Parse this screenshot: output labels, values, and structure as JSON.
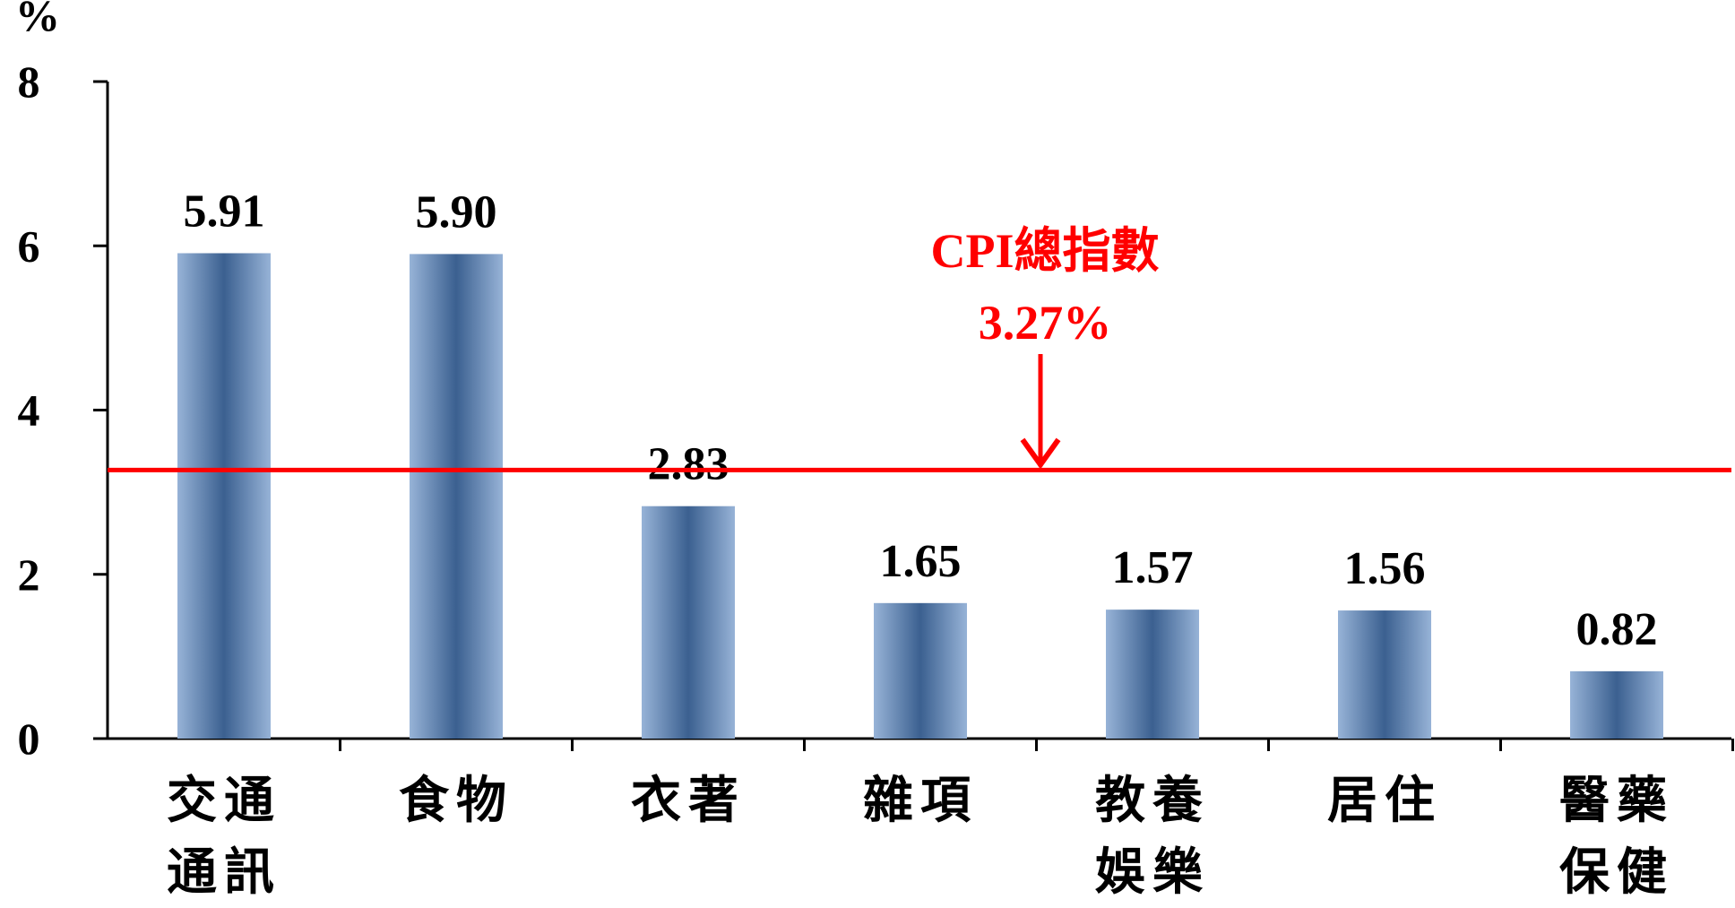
{
  "chart_data": {
    "type": "bar",
    "ylabel": "%",
    "ylim": [
      0,
      8
    ],
    "yticks": [
      "0",
      "2",
      "4",
      "6",
      "8"
    ],
    "categories": [
      [
        "交通",
        "通訊"
      ],
      [
        "食物"
      ],
      [
        "衣著"
      ],
      [
        "雜項"
      ],
      [
        "教養",
        "娛樂"
      ],
      [
        "居住"
      ],
      [
        "醫藥",
        "保健"
      ]
    ],
    "values": [
      5.91,
      5.9,
      2.83,
      1.65,
      1.57,
      1.56,
      0.82
    ],
    "value_labels": [
      "5.91",
      "5.90",
      "2.83",
      "1.65",
      "1.57",
      "1.56",
      "0.82"
    ],
    "reference_line": {
      "value": 3.27,
      "label_line1": "CPI總指數",
      "label_line2": "3.27%",
      "color": "#ff0000"
    },
    "bar_color_dark": "#3b6090",
    "bar_color_light": "#97b3d7",
    "grid": false,
    "legend": "none"
  }
}
